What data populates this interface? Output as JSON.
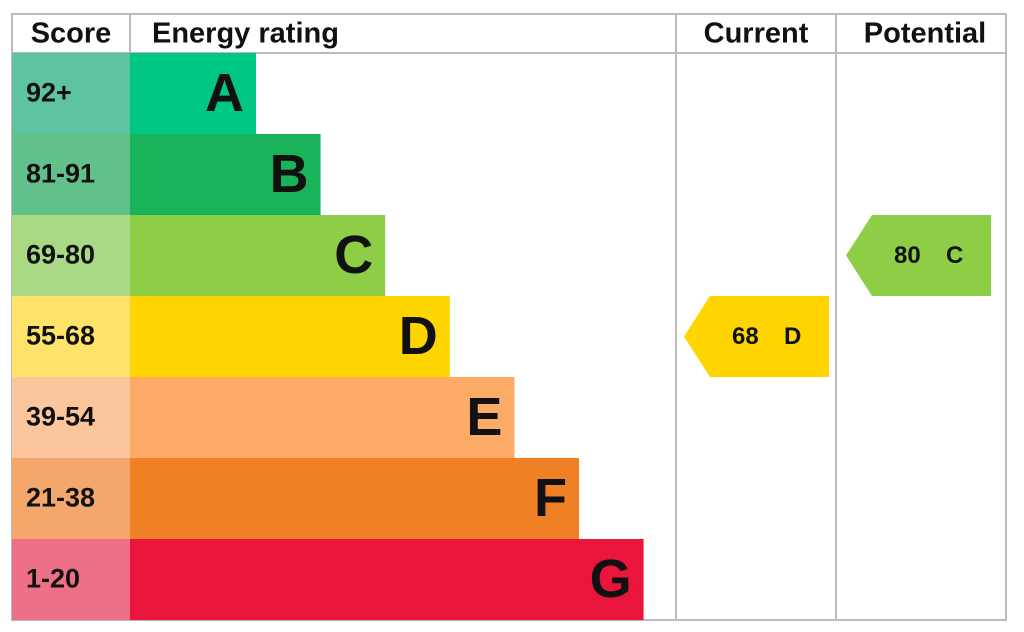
{
  "header": {
    "score": "Score",
    "rating": "Energy rating",
    "current": "Current",
    "potential": "Potential"
  },
  "bands": [
    {
      "range": "92+",
      "letter": "A",
      "color": "#00c781",
      "score_color": "#5ec4a0"
    },
    {
      "range": "81-91",
      "letter": "B",
      "color": "#19b459",
      "score_color": "#62c18a"
    },
    {
      "range": "69-80",
      "letter": "C",
      "color": "#8dce46",
      "score_color": "#aad986"
    },
    {
      "range": "55-68",
      "letter": "D",
      "color": "#ffd500",
      "score_color": "#ffe26a"
    },
    {
      "range": "39-54",
      "letter": "E",
      "color": "#fcaa65",
      "score_color": "#fcc69d"
    },
    {
      "range": "21-38",
      "letter": "F",
      "color": "#ef8023",
      "score_color": "#f3a76c"
    },
    {
      "range": "1-20",
      "letter": "G",
      "color": "#e9153b",
      "score_color": "#ee7088"
    }
  ],
  "current": {
    "score": 68,
    "band": "D"
  },
  "potential": {
    "score": 80,
    "band": "C"
  }
}
